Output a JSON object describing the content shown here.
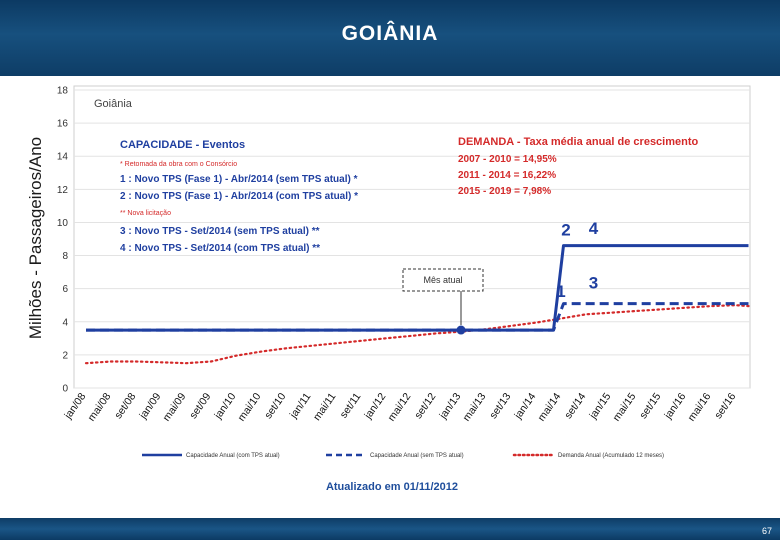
{
  "header": {
    "title": "GOIÂNIA"
  },
  "footer": {
    "page_number": "67"
  },
  "chart_data": {
    "type": "line",
    "title": "Goiânia",
    "ylabel": "Milhões - Passageiros/Ano",
    "xlabel": "",
    "ylim": [
      0,
      18
    ],
    "yticks": [
      0,
      2,
      4,
      6,
      8,
      10,
      12,
      14,
      16,
      18
    ],
    "grid": true,
    "legend_position": "bottom",
    "categories": [
      "jan/08",
      "mai/08",
      "set/08",
      "jan/09",
      "mai/09",
      "set/09",
      "jan/10",
      "mai/10",
      "set/10",
      "jan/11",
      "mai/11",
      "set/11",
      "jan/12",
      "mai/12",
      "set/12",
      "jan/13",
      "mai/13",
      "set/13",
      "jan/14",
      "mai/14",
      "set/14",
      "jan/15",
      "mai/15",
      "set/15",
      "jan/16",
      "mai/16",
      "set/16"
    ],
    "series": [
      {
        "name": "Capacidade Anual (com TPS atual)",
        "color": "#1f3fa0",
        "style": "solid",
        "points": [
          [
            0,
            3.5
          ],
          [
            15,
            3.5
          ],
          [
            18.7,
            3.5
          ],
          [
            19.1,
            8.6
          ],
          [
            26.5,
            8.6
          ]
        ]
      },
      {
        "name": "Capacidade Anual (sem TPS atual)",
        "color": "#1f3fa0",
        "style": "dashed",
        "points": [
          [
            0,
            3.5
          ],
          [
            18.7,
            3.5
          ],
          [
            19.1,
            5.1
          ],
          [
            26.5,
            5.1
          ]
        ]
      },
      {
        "name": "Demanda Anual (Acumulado 12 meses)",
        "color": "#d42a2a",
        "style": "dotted",
        "points": [
          [
            0,
            1.5
          ],
          [
            1,
            1.6
          ],
          [
            2,
            1.6
          ],
          [
            3,
            1.55
          ],
          [
            4,
            1.5
          ],
          [
            5,
            1.6
          ],
          [
            6,
            1.95
          ],
          [
            7,
            2.2
          ],
          [
            8,
            2.4
          ],
          [
            9,
            2.55
          ],
          [
            10,
            2.7
          ],
          [
            11,
            2.85
          ],
          [
            12,
            3.0
          ],
          [
            13,
            3.15
          ],
          [
            14,
            3.3
          ],
          [
            15,
            3.4
          ],
          [
            16,
            3.55
          ],
          [
            17,
            3.75
          ],
          [
            18,
            3.95
          ],
          [
            19,
            4.2
          ],
          [
            20,
            4.45
          ],
          [
            21,
            4.55
          ],
          [
            22,
            4.65
          ],
          [
            23,
            4.75
          ],
          [
            24,
            4.85
          ],
          [
            25,
            4.95
          ],
          [
            26,
            5.0
          ],
          [
            26.5,
            4.95
          ]
        ]
      }
    ],
    "current_month": {
      "label": "Mês atual",
      "x": 15,
      "y": 3.5
    },
    "markers": [
      {
        "label": "2",
        "x": 19.2,
        "y": 9.2
      },
      {
        "label": "4",
        "x": 20.3,
        "y": 9.3
      },
      {
        "label": "1",
        "x": 19.0,
        "y": 5.5
      },
      {
        "label": "3",
        "x": 20.3,
        "y": 6.0
      }
    ],
    "capacity_box": {
      "title": "CAPACIDADE - Eventos",
      "note1": "* Retomada da obra com o Consórcio",
      "line1": "1 : Novo TPS (Fase 1) - Abr/2014 (sem TPS atual)  *",
      "line2": "2 : Novo TPS (Fase 1) - Abr/2014 (com TPS atual)  *",
      "note2": "** Nova licitação",
      "line3": "3 : Novo TPS - Set/2014 (sem TPS atual) **",
      "line4": "4 : Novo TPS - Set/2014 (com TPS atual) **"
    },
    "demand_box": {
      "title": "DEMANDA - Taxa média anual de crescimento",
      "line1": "2007 - 2010 = 14,95%",
      "line2": "2011 - 2014 = 16,22%",
      "line3": "2015 - 2019 =   7,98%"
    },
    "updated": "Atualizado em 01/11/2012"
  }
}
